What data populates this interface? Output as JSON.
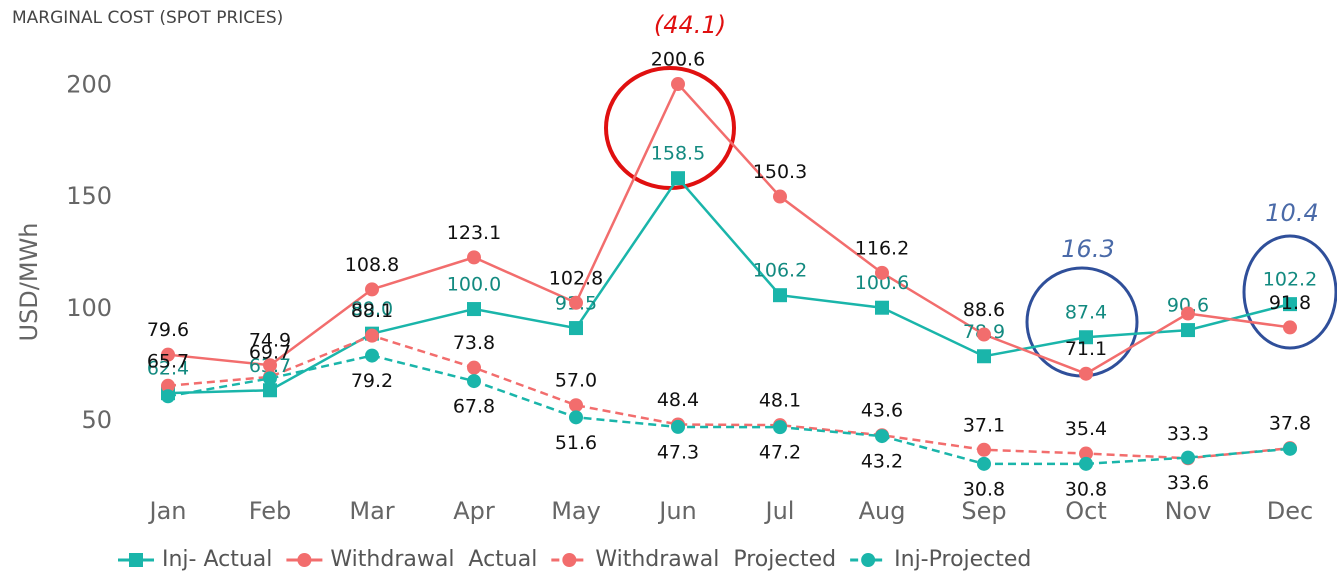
{
  "chart_data": {
    "type": "line",
    "title": "MARGINAL COST (SPOT PRICES)",
    "y_label": "USD/MWh",
    "categories": [
      "Jan",
      "Feb",
      "Mar",
      "Apr",
      "May",
      "Jun",
      "Jul",
      "Aug",
      "Sep",
      "Oct",
      "Nov",
      "Dec"
    ],
    "ylim": [
      20,
      210
    ],
    "yticks": [
      50,
      100,
      150,
      200
    ],
    "series": [
      {
        "name": "Inj- Actual",
        "color": "#1ab5aa",
        "dash": false,
        "marker": "square",
        "values": [
          62.4,
          63.7,
          89.0,
          100.0,
          91.5,
          158.5,
          106.2,
          100.6,
          78.9,
          87.4,
          90.6,
          102.2
        ],
        "value_labels": [
          "62.4",
          "63.7",
          "89.0",
          "100.0",
          "91.5",
          "158.5",
          "106.2",
          "100.6",
          "78.9",
          "87.4",
          "90.6",
          "102.2"
        ]
      },
      {
        "name": "Withdrawal  Actual",
        "color": "#f26d6d",
        "dash": false,
        "marker": "circle",
        "values": [
          79.6,
          74.9,
          108.8,
          123.1,
          102.8,
          200.6,
          150.3,
          116.2,
          88.6,
          71.1,
          98,
          91.8
        ],
        "value_labels": [
          "79.6",
          "74.9",
          "108.8",
          "123.1",
          "102.8",
          "200.6",
          "150.3",
          "116.2",
          "88.6",
          "71.1",
          null,
          "91.8"
        ]
      },
      {
        "name": "Withdrawal  Projected",
        "color": "#f26d6d",
        "dash": true,
        "marker": "circle",
        "values": [
          65.7,
          69.7,
          88.1,
          73.8,
          57.0,
          48.4,
          48.1,
          43.6,
          37.1,
          35.4,
          33.3,
          37.8
        ],
        "value_labels": [
          "65.7",
          "69.7",
          "88.1",
          "73.8",
          "57.0",
          "48.4",
          "48.1",
          "43.6",
          "37.1",
          "35.4",
          "33.3",
          "37.8"
        ]
      },
      {
        "name": "Inj-Projected",
        "color": "#1ab5aa",
        "dash": true,
        "marker": "circle",
        "values": [
          61,
          69,
          79.2,
          67.8,
          51.6,
          47.3,
          47.2,
          43.2,
          30.8,
          30.8,
          33.6,
          37.5
        ],
        "value_labels": [
          null,
          null,
          "79.2",
          "67.8",
          "51.6",
          "47.3",
          "47.2",
          "43.2",
          "30.8",
          "30.8",
          "33.6",
          null
        ]
      }
    ],
    "annotations": [
      "(44.1)",
      "16.3",
      "10.4"
    ]
  }
}
